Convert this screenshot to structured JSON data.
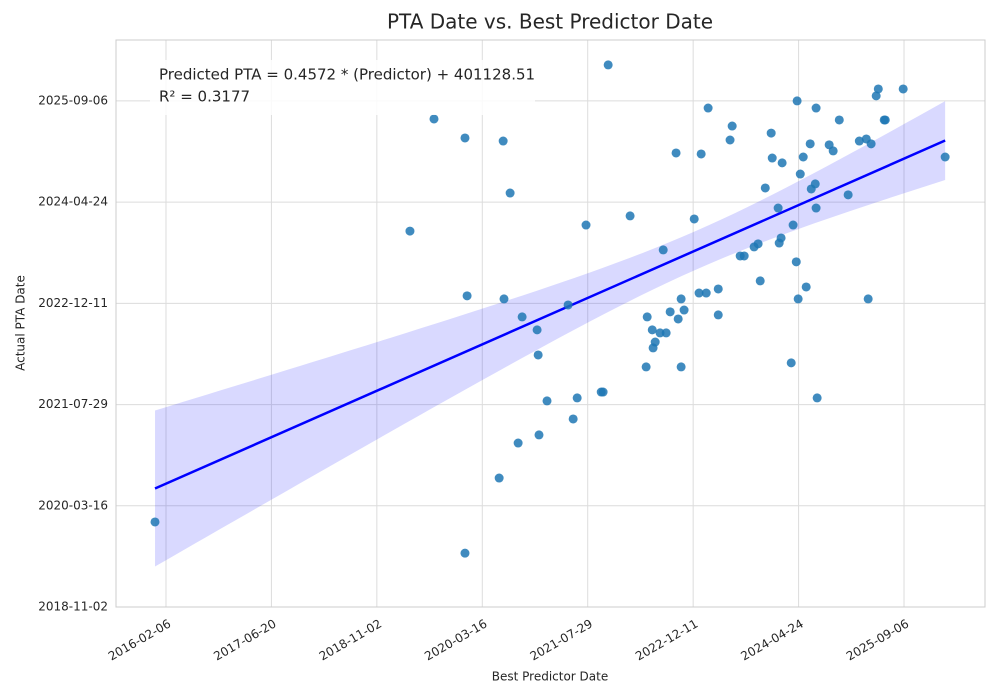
{
  "chart_data": {
    "type": "scatter",
    "title": "PTA Date vs. Best Predictor Date",
    "x_label": "Best Predictor Date",
    "y_label": "Actual PTA Date",
    "annotations": [
      "Predicted PTA = 0.4572 * (Predictor) + 401128.51",
      "R² = 0.3177"
    ],
    "color": "#1f77b4",
    "fit_color": "#0000ff",
    "grid": true,
    "xlim": [
      "2015-06-14",
      "2026-09-25"
    ],
    "ylim": [
      "2018-11-02",
      "2026-07-04"
    ],
    "xticks": [
      "2016-02-06",
      "2017-06-20",
      "2018-11-02",
      "2020-03-16",
      "2021-07-29",
      "2022-12-11",
      "2024-04-24",
      "2025-09-06"
    ],
    "yticks": [
      "2018-11-02",
      "2020-03-16",
      "2021-07-29",
      "2022-12-11",
      "2024-04-24",
      "2025-09-06"
    ],
    "x": [
      "2015-12-16",
      "2019-04-08",
      "2019-07-31",
      "2019-12-25",
      "2020-01-04",
      "2019-12-25",
      "2020-06-23",
      "2020-06-04",
      "2020-06-27",
      "2020-07-26",
      "2020-09-02",
      "2020-09-21",
      "2020-12-01",
      "2020-12-06",
      "2020-12-10",
      "2021-01-17",
      "2021-04-27",
      "2021-05-21",
      "2021-06-09",
      "2021-07-21",
      "2021-10-01",
      "2021-10-10",
      "2021-11-03",
      "2022-02-15",
      "2022-05-02",
      "2022-05-07",
      "2022-05-31",
      "2022-06-14",
      "2022-06-04",
      "2022-07-07",
      "2022-07-22",
      "2022-08-05",
      "2022-08-24",
      "2022-09-21",
      "2022-10-01",
      "2022-10-15",
      "2022-10-29",
      "2022-10-15",
      "2022-12-16",
      "2023-01-08",
      "2023-01-18",
      "2023-02-11",
      "2023-02-20",
      "2023-04-09",
      "2023-04-09",
      "2023-06-04",
      "2023-06-14",
      "2023-07-22",
      "2023-08-10",
      "2023-09-26",
      "2023-10-15",
      "2023-10-25",
      "2023-11-18",
      "2023-12-16",
      "2023-12-21",
      "2024-01-18",
      "2024-01-23",
      "2024-02-01",
      "2024-02-06",
      "2024-03-20",
      "2024-03-29",
      "2024-04-13",
      "2024-04-17",
      "2024-04-22",
      "2024-05-02",
      "2024-05-16",
      "2024-05-30",
      "2024-06-18",
      "2024-06-23",
      "2024-07-12",
      "2024-07-16",
      "2024-07-21",
      "2024-07-16",
      "2024-09-16",
      "2024-10-05",
      "2024-11-03",
      "2024-12-15",
      "2025-02-06",
      "2025-03-11",
      "2025-03-20",
      "2025-04-03",
      "2025-04-27",
      "2025-05-07",
      "2025-06-04",
      "2025-06-09",
      "2025-09-02",
      "2026-03-20"
    ],
    "values": [
      "2019-12-27",
      "2023-12-03",
      "2025-06-09",
      "2025-03-07",
      "2023-01-17",
      "2019-07-26",
      "2025-02-20",
      "2020-07-31",
      "2023-01-02",
      "2024-06-08",
      "2021-01-20",
      "2022-10-05",
      "2022-08-02",
      "2022-03-31",
      "2021-03-01",
      "2021-08-16",
      "2022-12-03",
      "2021-05-19",
      "2021-08-31",
      "2024-01-02",
      "2021-09-29",
      "2021-09-29",
      "2026-03-03",
      "2024-02-16",
      "2022-01-31",
      "2022-10-05",
      "2022-08-02",
      "2022-06-03",
      "2022-05-05",
      "2022-07-18",
      "2023-09-01",
      "2022-07-18",
      "2022-10-30",
      "2024-12-23",
      "2022-09-25",
      "2023-01-02",
      "2022-11-08",
      "2022-01-31",
      "2024-02-01",
      "2023-01-31",
      "2024-12-18",
      "2023-01-31",
      "2025-08-02",
      "2023-02-20",
      "2022-10-15",
      "2025-02-25",
      "2025-05-05",
      "2023-08-02",
      "2023-08-02",
      "2023-09-16",
      "2023-10-01",
      "2023-04-01",
      "2024-07-03",
      "2025-03-31",
      "2024-11-28",
      "2024-03-26",
      "2023-10-05",
      "2023-10-30",
      "2024-11-04",
      "2022-02-20",
      "2024-01-02",
      "2023-07-04",
      "2025-09-06",
      "2023-01-02",
      "2024-09-10",
      "2024-12-03",
      "2023-03-02",
      "2025-02-06",
      "2024-06-28",
      "2024-07-23",
      "2024-03-26",
      "2021-08-31",
      "2025-08-02",
      "2025-02-01",
      "2025-01-02",
      "2025-06-04",
      "2024-05-30",
      "2025-02-20",
      "2025-03-02",
      "2023-01-02",
      "2025-02-06",
      "2025-10-01",
      "2025-11-04",
      "2025-06-04",
      "2025-06-04",
      "2025-11-04",
      "2024-12-03"
    ]
  }
}
